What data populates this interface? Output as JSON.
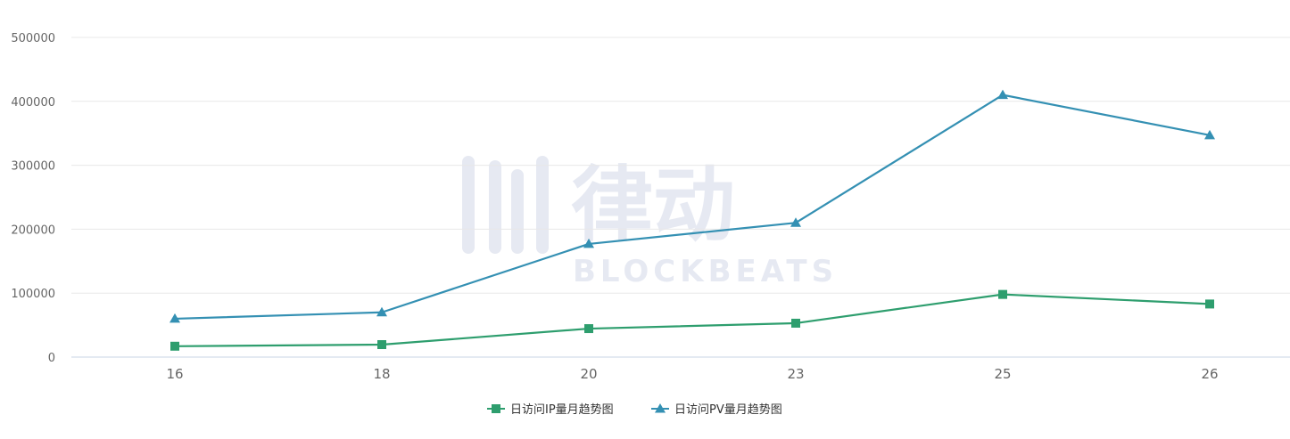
{
  "chart_data": {
    "type": "line",
    "categories": [
      "16",
      "18",
      "20",
      "23",
      "25",
      "26"
    ],
    "ylim": [
      0,
      500000
    ],
    "y_ticks": [
      "0",
      "100000",
      "200000",
      "300000",
      "400000",
      "500000"
    ],
    "grid": true,
    "legend_position": "bottom-center",
    "series": [
      {
        "name": "日访问IP量月趋势图",
        "color": "#2e9e6e",
        "marker": "square",
        "values": [
          17000,
          19500,
          44500,
          53000,
          98000,
          83000
        ]
      },
      {
        "name": "日访问PV量月趋势图",
        "color": "#3490b3",
        "marker": "triangle",
        "values": [
          60000,
          70000,
          177000,
          210000,
          410000,
          347000
        ]
      }
    ]
  },
  "watermark": {
    "text_cn": "律动",
    "text_en": "BLOCKBEATS",
    "color": "#e6e9f2"
  }
}
